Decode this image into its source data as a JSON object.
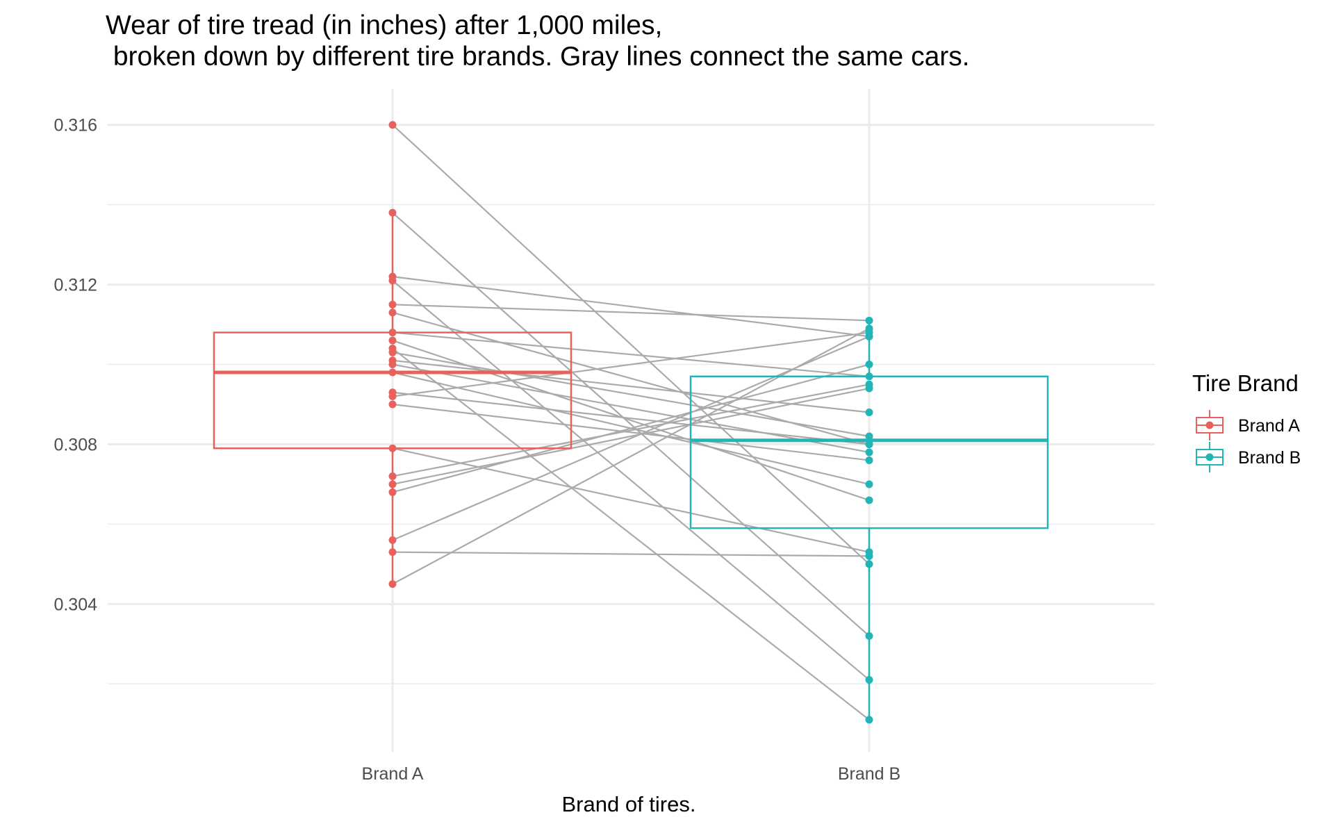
{
  "chart_data": {
    "type": "boxplot",
    "title_line1": "Wear of tire tread (in inches) after 1,000 miles,",
    "title_line2": " broken down by different tire brands. Gray lines connect the same cars.",
    "xlabel": "Brand of tires.",
    "ylabel": "",
    "ylim": [
      0.3003,
      0.3169
    ],
    "y_ticks": [
      0.304,
      0.308,
      0.312,
      0.316
    ],
    "y_tick_labels": [
      "0.304",
      "0.308",
      "0.312",
      "0.316"
    ],
    "categories": [
      "Brand A",
      "Brand B"
    ],
    "grid": true,
    "legend": {
      "title": "Tire Brand",
      "position": "right",
      "entries": [
        "Brand A",
        "Brand B"
      ]
    },
    "series": [
      {
        "name": "Brand A",
        "color": "#E8625D",
        "box": {
          "min": 0.3045,
          "q1": 0.3079,
          "median": 0.3098,
          "q3": 0.3108,
          "max": 0.3138
        },
        "values": [
          0.316,
          0.3138,
          0.3122,
          0.3121,
          0.3115,
          0.3113,
          0.3108,
          0.3106,
          0.3104,
          0.3103,
          0.3101,
          0.31,
          0.3098,
          0.3093,
          0.3092,
          0.309,
          0.3079,
          0.3072,
          0.307,
          0.3068,
          0.3056,
          0.3053,
          0.3045
        ]
      },
      {
        "name": "Brand B",
        "color": "#21B5B8",
        "box": {
          "min": 0.3011,
          "q1": 0.3059,
          "median": 0.3081,
          "q3": 0.3097,
          "max": 0.3111
        },
        "values": [
          0.305,
          0.3032,
          0.3107,
          0.3021,
          0.3111,
          0.308,
          0.3097,
          0.3066,
          0.3011,
          0.3082,
          0.3088,
          0.3078,
          0.307,
          0.308,
          0.3108,
          0.3076,
          0.3053,
          0.3095,
          0.3094,
          0.31,
          0.3107,
          0.3052,
          0.3109
        ]
      }
    ],
    "pairs_color": "#AAAAAA"
  }
}
